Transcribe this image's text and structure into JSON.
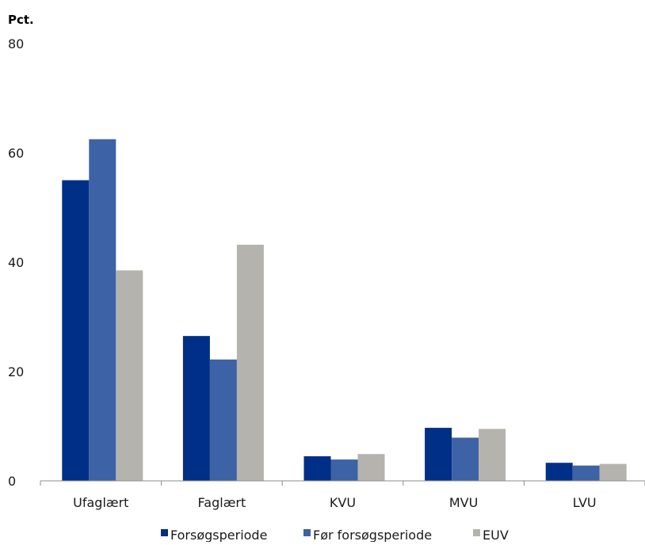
{
  "chart_data": {
    "type": "bar",
    "unit_label": "Pct.",
    "title": "",
    "xlabel": "",
    "ylabel": "Pct.",
    "ylim": [
      0,
      80
    ],
    "yticks": [
      0,
      20,
      40,
      60,
      80
    ],
    "grid": false,
    "legend_position": "bottom",
    "categories": [
      "Ufaglært",
      "Faglært",
      "KVU",
      "MVU",
      "LVU"
    ],
    "series": [
      {
        "name": "Forsøgsperiode",
        "color": "#002F87",
        "values": [
          55.0,
          26.5,
          4.5,
          9.7,
          3.3
        ]
      },
      {
        "name": "Før forsøgsperiode",
        "color": "#3D62A5",
        "values": [
          62.5,
          22.2,
          3.9,
          7.9,
          2.8
        ]
      },
      {
        "name": "EUV",
        "color": "#B5B3AE",
        "values": [
          38.5,
          43.2,
          4.9,
          9.5,
          3.1
        ]
      }
    ]
  }
}
